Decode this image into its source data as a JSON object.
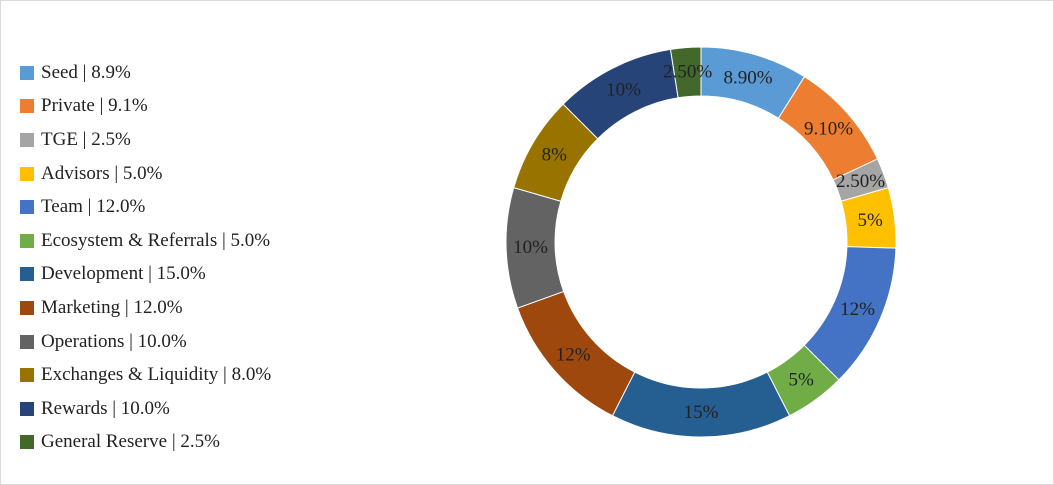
{
  "chart_data": {
    "type": "pie",
    "style": "donut",
    "legend_position": "left",
    "series": [
      {
        "name": "Seed",
        "legend_label": "Seed | 8.9%",
        "value": 8.9,
        "data_label": "8.90%",
        "color": "#5b9bd5"
      },
      {
        "name": "Private",
        "legend_label": "Private | 9.1%",
        "value": 9.1,
        "data_label": "9.10%",
        "color": "#ed7d31"
      },
      {
        "name": "TGE",
        "legend_label": "TGE | 2.5%",
        "value": 2.5,
        "data_label": "2.50%",
        "color": "#a5a5a5"
      },
      {
        "name": "Advisors",
        "legend_label": "Advisors | 5.0%",
        "value": 5.0,
        "data_label": "5%",
        "color": "#ffc000"
      },
      {
        "name": "Team",
        "legend_label": "Team | 12.0%",
        "value": 12.0,
        "data_label": "12%",
        "color": "#4472c4"
      },
      {
        "name": "Ecosystem & Referrals",
        "legend_label": "Ecosystem & Referrals | 5.0%",
        "value": 5.0,
        "data_label": "5%",
        "color": "#70ad47"
      },
      {
        "name": "Development",
        "legend_label": "Development | 15.0%",
        "value": 15.0,
        "data_label": "15%",
        "color": "#255e91"
      },
      {
        "name": "Marketing",
        "legend_label": "Marketing | 12.0%",
        "value": 12.0,
        "data_label": "12%",
        "color": "#9e480e"
      },
      {
        "name": "Operations",
        "legend_label": "Operations | 10.0%",
        "value": 10.0,
        "data_label": "10%",
        "color": "#636363"
      },
      {
        "name": "Exchanges & Liquidity",
        "legend_label": "Exchanges & Liquidity | 8.0%",
        "value": 8.0,
        "data_label": "8%",
        "color": "#997300"
      },
      {
        "name": "Rewards",
        "legend_label": "Rewards | 10.0%",
        "value": 10.0,
        "data_label": "10%",
        "color": "#264478"
      },
      {
        "name": "General Reserve",
        "legend_label": "General Reserve | 2.5%",
        "value": 2.5,
        "data_label": "2.50%",
        "color": "#43682b"
      }
    ]
  }
}
